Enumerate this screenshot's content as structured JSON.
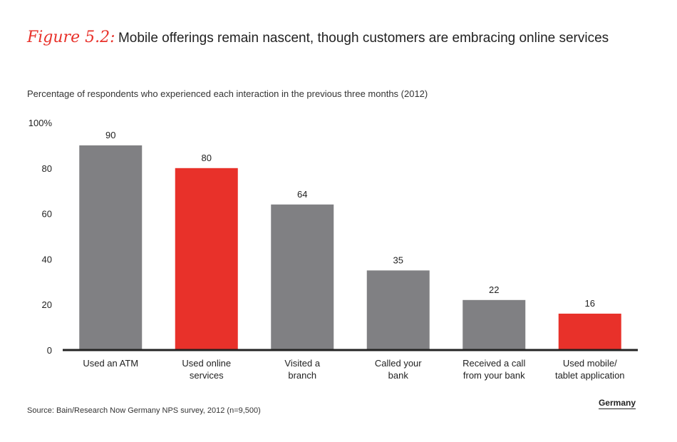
{
  "figure": {
    "label": "Figure 5.2:",
    "title": "Mobile offerings remain nascent, though customers are embracing online services"
  },
  "subtitle": "Percentage of respondents who experienced each interaction in the previous three months (2012)",
  "source": "Source: Bain/Research Now Germany NPS survey, 2012 (n=9,500)",
  "region_label": "Germany",
  "colors": {
    "gray": "#808083",
    "red": "#e8312a",
    "axis": "#222222"
  },
  "chart_data": {
    "type": "bar",
    "categories": [
      [
        "Used an ATM"
      ],
      [
        "Used online",
        "services"
      ],
      [
        "Visited a",
        "branch"
      ],
      [
        "Called your",
        "bank"
      ],
      [
        "Received a call",
        "from your bank"
      ],
      [
        "Used mobile/",
        "tablet application"
      ]
    ],
    "values": [
      90,
      80,
      64,
      35,
      22,
      16
    ],
    "highlight": [
      false,
      true,
      false,
      false,
      false,
      true
    ],
    "ylim": [
      0,
      100
    ],
    "yticks": [
      0,
      20,
      40,
      60,
      80,
      100
    ],
    "ytick_labels": [
      "0",
      "20",
      "40",
      "60",
      "80",
      "100%"
    ],
    "grid": false
  }
}
